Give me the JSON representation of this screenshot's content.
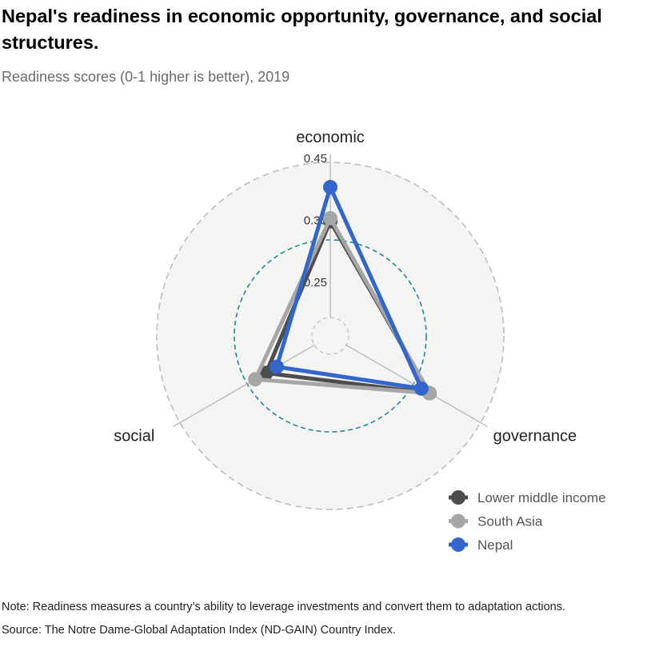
{
  "title": "Nepal's readiness in economic opportunity, governance, and social structures.",
  "subtitle": "Readiness scores (0-1 higher is better), 2019",
  "note": "Note: Readiness measures a country’s ability to leverage investments and convert them to adaptation actions.",
  "source": "Source: The Notre Dame-Global Adaptation Index (ND-GAIN) Country Index.",
  "chart_data": {
    "type": "radar",
    "axes": [
      "economic",
      "governance",
      "social"
    ],
    "rlim": [
      0.2,
      0.45
    ],
    "ticks": [
      0.25,
      0.35,
      0.45
    ],
    "tick_labels": [
      "0.25",
      "0.35",
      "0.45"
    ],
    "legend_position": "bottom-right",
    "series": [
      {
        "name": "Lower middle income",
        "color": "#4d4d4d",
        "values": [
          0.355,
          0.355,
          0.29
        ]
      },
      {
        "name": "South Asia",
        "color": "#a6a6a6",
        "values": [
          0.36,
          0.355,
          0.31
        ]
      },
      {
        "name": "Nepal",
        "color": "#3366cc",
        "values": [
          0.41,
          0.34,
          0.27
        ]
      }
    ]
  }
}
